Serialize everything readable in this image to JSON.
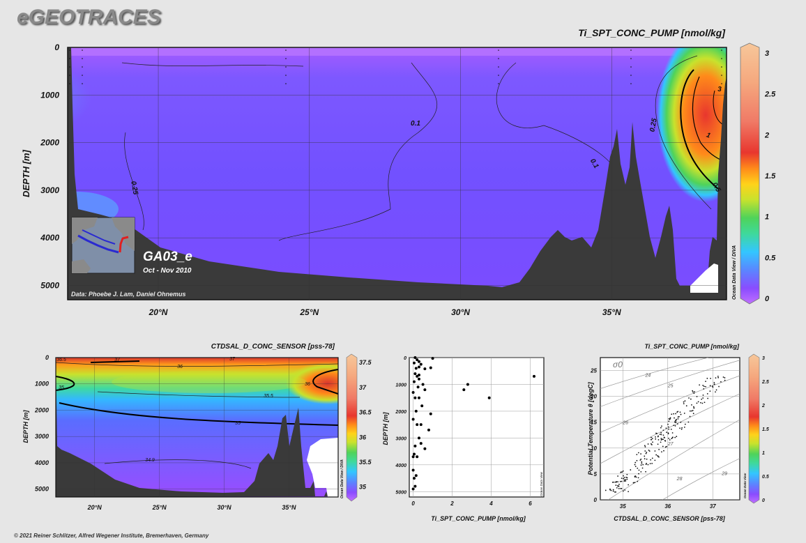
{
  "header": {
    "logo": "eGEOTRACES",
    "footer": "© 2021 Reiner Schlitzer, Alfred Wegener Institute, Bremerhaven, Germany"
  },
  "colors": {
    "background": "#e6e6e6",
    "seafloor": "#3a3a3a",
    "colormap": [
      "#b45cff",
      "#8a4cff",
      "#6d5cff",
      "#4a8dff",
      "#33c6ff",
      "#2fe0c8",
      "#4fd35a",
      "#c8e22d",
      "#ffd21a",
      "#ff8a1a",
      "#e8362e",
      "#f08a70",
      "#f5b88a",
      "#f7c79a"
    ]
  },
  "chart_data": [
    {
      "type": "heatmap",
      "title": "Ti_SPT_CONC_PUMP [nmol/kg]",
      "ylabel": "DEPTH [m]",
      "x_ticks": [
        "20°N",
        "25°N",
        "30°N",
        "35°N"
      ],
      "y_ticks": [
        "0",
        "1000",
        "2000",
        "3000",
        "4000",
        "5000"
      ],
      "xlim": [
        17,
        38.8
      ],
      "ylim": [
        0,
        5300
      ],
      "colorbar_ticks": [
        "0",
        "0.5",
        "1",
        "1.5",
        "2",
        "2.5",
        "3"
      ],
      "colorbar_range": [
        0,
        3
      ],
      "contour_labels": [
        "0.25",
        "0.1",
        "0.1",
        "0.25",
        "0.5",
        "1",
        "3"
      ],
      "section_name": "GA03_e",
      "dates": "Oct - Nov 2010",
      "credit": "Data: Phoebe J. Lam, Daniel Ohnemus",
      "watermark": "Ocean Data View / DIVA"
    },
    {
      "type": "heatmap",
      "title": "CTDSAL_D_CONC_SENSOR [pss-78]",
      "ylabel": "DEPTH [m]",
      "x_ticks": [
        "20°N",
        "25°N",
        "30°N",
        "35°N"
      ],
      "y_ticks": [
        "0",
        "1000",
        "2000",
        "3000",
        "4000",
        "5000"
      ],
      "xlim": [
        17,
        38.8
      ],
      "ylim": [
        0,
        5300
      ],
      "colorbar_ticks": [
        "35",
        "35.5",
        "36",
        "36.5",
        "37",
        "37.5"
      ],
      "colorbar_range": [
        34.8,
        37.6
      ],
      "contour_labels": [
        "36.5",
        "37",
        "36",
        "37",
        "35",
        "36",
        "35.5",
        "35",
        "34.9"
      ],
      "watermark": "Ocean Data View / DIVA"
    },
    {
      "type": "scatter",
      "xlabel": "Ti_SPT_CONC_PUMP [nmol/kg]",
      "ylabel": "DEPTH [m]",
      "x_ticks": [
        "0",
        "2",
        "4",
        "6"
      ],
      "y_ticks": [
        "0",
        "1000",
        "2000",
        "3000",
        "4000",
        "5000"
      ],
      "xlim": [
        -0.2,
        6.7
      ],
      "ylim": [
        0,
        5200
      ],
      "watermark": "Ocean Data View",
      "points": [
        [
          0.1,
          0
        ],
        [
          0.2,
          80
        ],
        [
          0.3,
          150
        ],
        [
          0.05,
          200
        ],
        [
          0.4,
          250
        ],
        [
          1.0,
          30
        ],
        [
          0.15,
          400
        ],
        [
          0.3,
          350
        ],
        [
          0.6,
          420
        ],
        [
          0.9,
          380
        ],
        [
          0.1,
          600
        ],
        [
          0.2,
          700
        ],
        [
          0.3,
          800
        ],
        [
          0.05,
          900
        ],
        [
          0.5,
          1000
        ],
        [
          0.25,
          1100
        ],
        [
          0.1,
          1500
        ],
        [
          0.3,
          1500
        ],
        [
          0.6,
          1200
        ],
        [
          0.0,
          1300
        ],
        [
          0.15,
          2000
        ],
        [
          0.2,
          2500
        ],
        [
          0.0,
          2300
        ],
        [
          0.4,
          2500
        ],
        [
          0.8,
          2700
        ],
        [
          0.9,
          2100
        ],
        [
          0.3,
          3000
        ],
        [
          0.1,
          3300
        ],
        [
          0.05,
          3600
        ],
        [
          0.0,
          3700
        ],
        [
          0.4,
          3200
        ],
        [
          0.6,
          3400
        ],
        [
          0.2,
          3700
        ],
        [
          0.0,
          4200
        ],
        [
          0.05,
          4500
        ],
        [
          0.1,
          4800
        ],
        [
          0.0,
          4900
        ],
        [
          0.15,
          4400
        ],
        [
          2.6,
          1200
        ],
        [
          2.8,
          1000
        ],
        [
          3.9,
          1500
        ],
        [
          6.2,
          700
        ],
        [
          0.3,
          650
        ],
        [
          0.45,
          1800
        ]
      ]
    },
    {
      "type": "scatter",
      "title": "Ti_SPT_CONC_PUMP [nmol/kg]",
      "xlabel": "CTDSAL_D_CONC_SENSOR [pss-78]",
      "ylabel": "Potential Temperature θ [degC]",
      "x_ticks": [
        "35",
        "36",
        "37"
      ],
      "y_ticks": [
        "0",
        "5",
        "10",
        "15",
        "20",
        "25"
      ],
      "xlim": [
        34.5,
        37.6
      ],
      "ylim": [
        0,
        27.5
      ],
      "sigma_label": "σ0",
      "isopycnal_labels": [
        "24",
        "25",
        "26",
        "27",
        "28",
        "29"
      ],
      "colorbar_ticks": [
        "0",
        "0.5",
        "1",
        "1.5",
        "2",
        "2.5",
        "3"
      ],
      "colorbar_range": [
        0,
        3
      ],
      "watermark": "Ocean Data View"
    }
  ]
}
